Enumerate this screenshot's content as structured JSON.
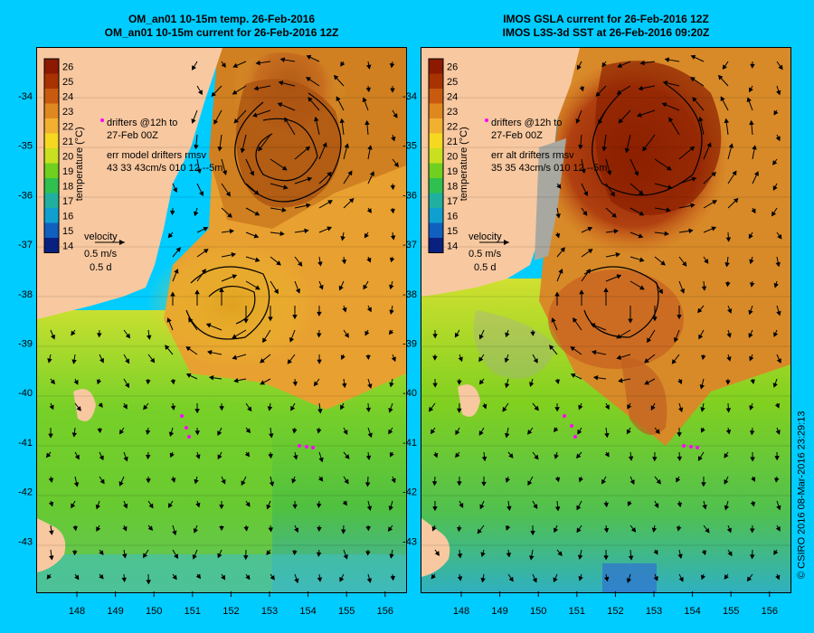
{
  "left_panel": {
    "title_line1": "OM_an01 10-15m temp. 26-Feb-2016",
    "title_line2": "OM_an01 10-15m current for 26-Feb-2016 12Z",
    "drifters_line1": "drifters @12h to",
    "drifters_line2": "27-Feb 00Z",
    "err_line1": "err model drifters rmsv",
    "err_line2": "43 33 43cm/s 010 12 --5m",
    "velocity_label": "velocity",
    "velocity_speed": "0.5 m/s",
    "velocity_time": "0.5 d"
  },
  "right_panel": {
    "title_line1": "IMOS GSLA current for 26-Feb-2016 12Z",
    "title_line2": "IMOS L3S-3d SST at 26-Feb-2016 09:20Z",
    "drifters_line1": "drifters @12h to",
    "drifters_line2": "27-Feb 00Z",
    "err_line1": "err alt drifters rmsv",
    "err_line2": "35 35 43cm/s 010 12 --5m",
    "velocity_label": "velocity",
    "velocity_speed": "0.5 m/s",
    "velocity_time": "0.5 d"
  },
  "colorbar": {
    "label": "temperature (°C)",
    "ticks": [
      "26",
      "25",
      "24",
      "23",
      "22",
      "21",
      "20",
      "19",
      "18",
      "17",
      "16",
      "15",
      "14"
    ],
    "colors": [
      "#8b1a00",
      "#a83300",
      "#c85a10",
      "#e08820",
      "#f2b030",
      "#f5d820",
      "#c8e020",
      "#70d020",
      "#30c050",
      "#20b0a0",
      "#10a0d0",
      "#1060c0",
      "#0a2080"
    ]
  },
  "axes": {
    "x_ticks": [
      "148",
      "149",
      "150",
      "151",
      "152",
      "153",
      "154",
      "155",
      "156"
    ],
    "y_ticks": [
      "-34",
      "-35",
      "-36",
      "-37",
      "-38",
      "-39",
      "-40",
      "-41",
      "-42",
      "-43"
    ]
  },
  "credit": "© CSIRO 2016   08-Mar-2016 23:29:13",
  "colors": {
    "background": "#00ccff",
    "land": "#f8c8a0",
    "drifter": "#ff00ff"
  }
}
